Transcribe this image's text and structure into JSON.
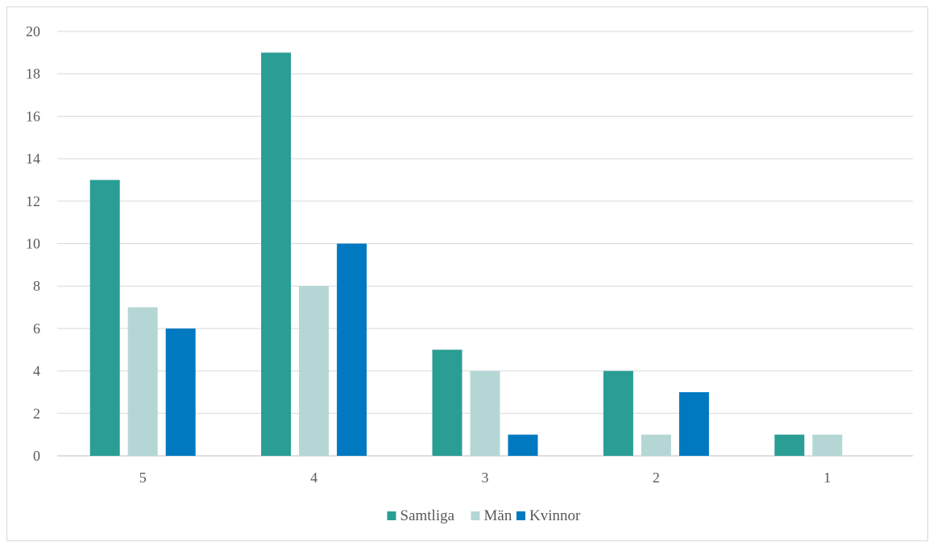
{
  "chart_data": {
    "type": "bar",
    "title": "",
    "xlabel": "",
    "ylabel": "",
    "categories": [
      "5",
      "4",
      "3",
      "2",
      "1"
    ],
    "series": [
      {
        "name": "Samtliga",
        "color": "#2a9d94",
        "values": [
          13,
          19,
          5,
          4,
          1
        ]
      },
      {
        "name": "Män",
        "color": "#b4d7d6",
        "values": [
          7,
          8,
          4,
          1,
          1
        ]
      },
      {
        "name": "Kvinnor",
        "color": "#0079c1",
        "values": [
          6,
          10,
          1,
          3,
          0
        ]
      }
    ],
    "ylim": [
      0,
      20
    ],
    "yticks": [
      "0",
      "2",
      "4",
      "6",
      "8",
      "10",
      "12",
      "14",
      "16",
      "18",
      "20"
    ],
    "grid": true,
    "legend_position": "bottom-center"
  }
}
